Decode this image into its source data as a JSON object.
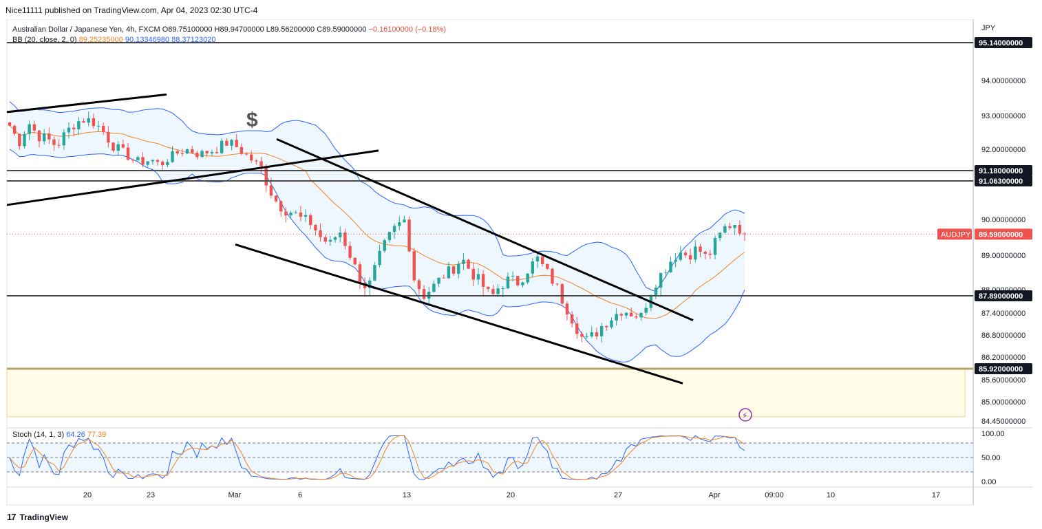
{
  "header": {
    "published": "Nice11111 published on TradingView.com, Apr 04, 2023 02:30 UTC-4"
  },
  "legend": {
    "symbol": "Australian Dollar / Japanese Yen, 4h, FXCM",
    "open": "O89.75100000",
    "high": "H89.94700000",
    "low": "L89.56200000",
    "close": "C89.59000000",
    "change": "−0.16100000 (−0.18%)",
    "bb_label": "BB (20, close, 2, 0)",
    "bb_basis": "89.25235000",
    "bb_upper": "90.13346980",
    "bb_lower": "88.37123020"
  },
  "stoch_legend": {
    "label": "Stoch (14, 1, 3)",
    "k": "64.26",
    "d": "77.39"
  },
  "footer": {
    "brand": "TradingView",
    "logo": "17"
  },
  "colors": {
    "up": "#26a69a",
    "down": "#ef5350",
    "basis": "#f2821f",
    "band": "#2962ff",
    "band_fill": "#e3f2fd",
    "zone_fill": "#fffde7",
    "zone_line": "#b5a36c",
    "hline": "#4a4a4a",
    "price_tag": "#ef5350",
    "stoch_fill": "#e3f2fd"
  },
  "chart_data": {
    "type": "candlestick",
    "title": "Australian Dollar / Japanese Yen, 4h, FXCM",
    "currency_label": "JPY",
    "y_range": [
      84.45,
      95.5
    ],
    "y_ticks": [
      "94.00000000",
      "93.00000000",
      "92.00000000",
      "90.00000000",
      "89.00000000",
      "88.00000000",
      "87.40000000",
      "86.80000000",
      "86.20000000",
      "85.60000000",
      "85.00000000",
      "84.45000000"
    ],
    "x_ticks": [
      "20",
      "23",
      "Mar",
      "6",
      "13",
      "20",
      "27",
      "Apr",
      "09:00",
      "10",
      "17"
    ],
    "horizontal_levels": [
      {
        "value": 95.14,
        "label": "95.14000000"
      },
      {
        "value": 91.18,
        "label": "91.18000000"
      },
      {
        "value": 91.063,
        "label": "91.06300000"
      },
      {
        "value": 87.89,
        "label": "87.89000000"
      },
      {
        "value": 85.92,
        "label": "85.92000000"
      }
    ],
    "last_price": {
      "symbol": "AUDJPY",
      "value": 89.59,
      "label": "89.59000000"
    },
    "support_zone": {
      "from": 84.65,
      "to": 85.92
    },
    "close_path": [
      92.7,
      92.2,
      92.8,
      92.4,
      92.3,
      92.1,
      92.5,
      92.8,
      92.9,
      92.8,
      92.5,
      92.1,
      91.9,
      91.6,
      91.5,
      91.6,
      91.4,
      91.7,
      91.9,
      92.0,
      91.8,
      91.9,
      92.0,
      92.2,
      92.1,
      91.8,
      91.5,
      91.2,
      90.6,
      90.3,
      90.2,
      90.0,
      89.9,
      89.5,
      89.3,
      89.7,
      89.1,
      88.4,
      88.0,
      88.8,
      89.4,
      89.8,
      90.0,
      88.2,
      87.9,
      88.1,
      88.4,
      88.6,
      88.9,
      88.5,
      88.2,
      87.8,
      88.1,
      88.3,
      88.2,
      88.6,
      88.9,
      88.5,
      88.1,
      87.6,
      87.1,
      86.6,
      86.8,
      87.1,
      87.3,
      87.5,
      87.4,
      87.3,
      88.0,
      88.4,
      88.8,
      89.1,
      89.0,
      89.2,
      88.9,
      89.4,
      89.8,
      89.9,
      89.59
    ],
    "bb_period": 20,
    "trend_lines": [
      {
        "from": [
          "Feb 15",
          93.1
        ],
        "to": [
          "Feb 24",
          93.6
        ]
      },
      {
        "from": [
          "Feb 15",
          90.4
        ],
        "to": [
          "Mar 10",
          91.95
        ]
      },
      {
        "from": [
          "Mar 1",
          89.3
        ],
        "to": [
          "Apr 1",
          85.5
        ]
      },
      {
        "from": [
          "Mar 4",
          92.3
        ],
        "to": [
          "Mar 30",
          87.2
        ]
      }
    ],
    "stoch": {
      "label": "Stoch (14, 1, 3)",
      "k_last": 64.26,
      "d_last": 77.39,
      "y_ticks": [
        "100.00",
        "50.00",
        "0.00"
      ],
      "levels": [
        80,
        50,
        20
      ]
    }
  }
}
